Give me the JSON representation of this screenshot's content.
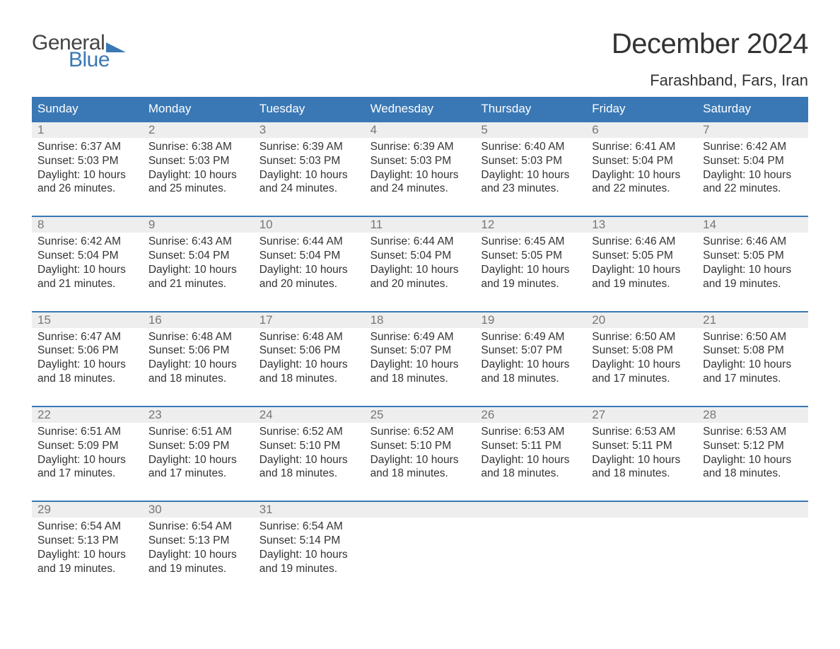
{
  "brand": {
    "word1": "General",
    "word2": "Blue",
    "accent_color": "#3a78b5"
  },
  "title": "December 2024",
  "location": "Farashband, Fars, Iran",
  "colors": {
    "header_bg": "#3a78b5",
    "header_text": "#ffffff",
    "daynum_bg": "#eeeeee",
    "daynum_text": "#777777",
    "body_text": "#333333",
    "week_border": "#3a78b5",
    "page_bg": "#ffffff"
  },
  "day_names": [
    "Sunday",
    "Monday",
    "Tuesday",
    "Wednesday",
    "Thursday",
    "Friday",
    "Saturday"
  ],
  "weeks": [
    {
      "days": [
        {
          "n": "1",
          "sunrise": "6:37 AM",
          "sunset": "5:03 PM",
          "daylight": "10 hours and 26 minutes."
        },
        {
          "n": "2",
          "sunrise": "6:38 AM",
          "sunset": "5:03 PM",
          "daylight": "10 hours and 25 minutes."
        },
        {
          "n": "3",
          "sunrise": "6:39 AM",
          "sunset": "5:03 PM",
          "daylight": "10 hours and 24 minutes."
        },
        {
          "n": "4",
          "sunrise": "6:39 AM",
          "sunset": "5:03 PM",
          "daylight": "10 hours and 24 minutes."
        },
        {
          "n": "5",
          "sunrise": "6:40 AM",
          "sunset": "5:03 PM",
          "daylight": "10 hours and 23 minutes."
        },
        {
          "n": "6",
          "sunrise": "6:41 AM",
          "sunset": "5:04 PM",
          "daylight": "10 hours and 22 minutes."
        },
        {
          "n": "7",
          "sunrise": "6:42 AM",
          "sunset": "5:04 PM",
          "daylight": "10 hours and 22 minutes."
        }
      ]
    },
    {
      "days": [
        {
          "n": "8",
          "sunrise": "6:42 AM",
          "sunset": "5:04 PM",
          "daylight": "10 hours and 21 minutes."
        },
        {
          "n": "9",
          "sunrise": "6:43 AM",
          "sunset": "5:04 PM",
          "daylight": "10 hours and 21 minutes."
        },
        {
          "n": "10",
          "sunrise": "6:44 AM",
          "sunset": "5:04 PM",
          "daylight": "10 hours and 20 minutes."
        },
        {
          "n": "11",
          "sunrise": "6:44 AM",
          "sunset": "5:04 PM",
          "daylight": "10 hours and 20 minutes."
        },
        {
          "n": "12",
          "sunrise": "6:45 AM",
          "sunset": "5:05 PM",
          "daylight": "10 hours and 19 minutes."
        },
        {
          "n": "13",
          "sunrise": "6:46 AM",
          "sunset": "5:05 PM",
          "daylight": "10 hours and 19 minutes."
        },
        {
          "n": "14",
          "sunrise": "6:46 AM",
          "sunset": "5:05 PM",
          "daylight": "10 hours and 19 minutes."
        }
      ]
    },
    {
      "days": [
        {
          "n": "15",
          "sunrise": "6:47 AM",
          "sunset": "5:06 PM",
          "daylight": "10 hours and 18 minutes."
        },
        {
          "n": "16",
          "sunrise": "6:48 AM",
          "sunset": "5:06 PM",
          "daylight": "10 hours and 18 minutes."
        },
        {
          "n": "17",
          "sunrise": "6:48 AM",
          "sunset": "5:06 PM",
          "daylight": "10 hours and 18 minutes."
        },
        {
          "n": "18",
          "sunrise": "6:49 AM",
          "sunset": "5:07 PM",
          "daylight": "10 hours and 18 minutes."
        },
        {
          "n": "19",
          "sunrise": "6:49 AM",
          "sunset": "5:07 PM",
          "daylight": "10 hours and 18 minutes."
        },
        {
          "n": "20",
          "sunrise": "6:50 AM",
          "sunset": "5:08 PM",
          "daylight": "10 hours and 17 minutes."
        },
        {
          "n": "21",
          "sunrise": "6:50 AM",
          "sunset": "5:08 PM",
          "daylight": "10 hours and 17 minutes."
        }
      ]
    },
    {
      "days": [
        {
          "n": "22",
          "sunrise": "6:51 AM",
          "sunset": "5:09 PM",
          "daylight": "10 hours and 17 minutes."
        },
        {
          "n": "23",
          "sunrise": "6:51 AM",
          "sunset": "5:09 PM",
          "daylight": "10 hours and 17 minutes."
        },
        {
          "n": "24",
          "sunrise": "6:52 AM",
          "sunset": "5:10 PM",
          "daylight": "10 hours and 18 minutes."
        },
        {
          "n": "25",
          "sunrise": "6:52 AM",
          "sunset": "5:10 PM",
          "daylight": "10 hours and 18 minutes."
        },
        {
          "n": "26",
          "sunrise": "6:53 AM",
          "sunset": "5:11 PM",
          "daylight": "10 hours and 18 minutes."
        },
        {
          "n": "27",
          "sunrise": "6:53 AM",
          "sunset": "5:11 PM",
          "daylight": "10 hours and 18 minutes."
        },
        {
          "n": "28",
          "sunrise": "6:53 AM",
          "sunset": "5:12 PM",
          "daylight": "10 hours and 18 minutes."
        }
      ]
    },
    {
      "days": [
        {
          "n": "29",
          "sunrise": "6:54 AM",
          "sunset": "5:13 PM",
          "daylight": "10 hours and 19 minutes."
        },
        {
          "n": "30",
          "sunrise": "6:54 AM",
          "sunset": "5:13 PM",
          "daylight": "10 hours and 19 minutes."
        },
        {
          "n": "31",
          "sunrise": "6:54 AM",
          "sunset": "5:14 PM",
          "daylight": "10 hours and 19 minutes."
        },
        null,
        null,
        null,
        null
      ]
    }
  ],
  "labels": {
    "sunrise": "Sunrise: ",
    "sunset": "Sunset: ",
    "daylight": "Daylight: "
  }
}
